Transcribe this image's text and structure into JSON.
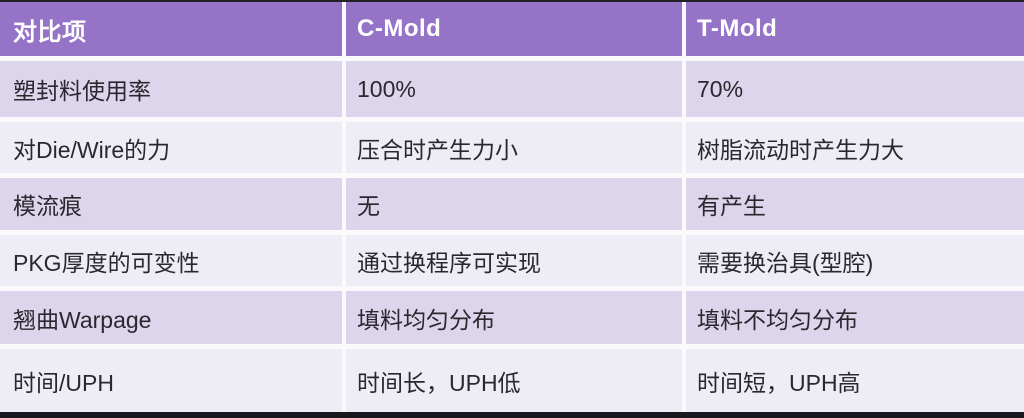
{
  "table": {
    "headers": [
      "对比项",
      "C-Mold",
      "T-Mold"
    ],
    "rows": [
      [
        "塑封料使用率",
        "100%",
        "70%"
      ],
      [
        "对Die/Wire的力",
        "压合时产生力小",
        "树脂流动时产生力大"
      ],
      [
        "模流痕",
        "无",
        "有产生"
      ],
      [
        "PKG厚度的可变性",
        "通过换程序可实现",
        "需要换治具(型腔)"
      ],
      [
        "翘曲Warpage",
        "填料均匀分布",
        "填料不均匀分布"
      ],
      [
        "时间/UPH",
        "时间长，UPH低",
        "时间短，UPH高"
      ]
    ]
  },
  "colors": {
    "header_bg": "#9574c8",
    "header_text": "#ffffff",
    "row_odd_bg": "#ddd5ec",
    "row_even_bg": "#eeecf5",
    "gutter": "#faf9fc",
    "body_text": "#29282e",
    "top_line": "#232127",
    "bottom_bar": "#1a181c"
  }
}
